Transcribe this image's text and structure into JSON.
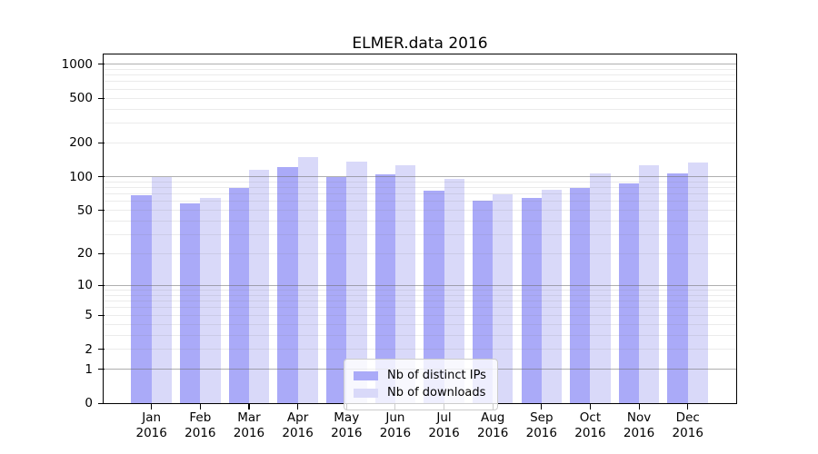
{
  "title": "ELMER.data 2016",
  "chart_data": {
    "type": "bar",
    "title": "ELMER.data 2016",
    "categories": [
      "Jan 2016",
      "Feb 2016",
      "Mar 2016",
      "Apr 2016",
      "May 2016",
      "Jun 2016",
      "Jul 2016",
      "Aug 2016",
      "Sep 2016",
      "Oct 2016",
      "Nov 2016",
      "Dec 2016"
    ],
    "series": [
      {
        "name": "Nb of distinct IPs",
        "color": "#aaaaf8",
        "values": [
          68,
          58,
          80,
          121,
          100,
          106,
          75,
          61,
          65,
          79,
          87,
          107
        ]
      },
      {
        "name": "Nb of downloads",
        "color": "#d9d9f9",
        "values": [
          100,
          64,
          116,
          150,
          136,
          127,
          95,
          69,
          77,
          107,
          127,
          133
        ]
      }
    ],
    "xlabel": "",
    "ylabel": "",
    "yscale": "log10(value+1)",
    "ytick_labels": [
      "0",
      "1",
      "2",
      "5",
      "10",
      "20",
      "50",
      "100",
      "200",
      "500",
      "1000"
    ],
    "ytick_values": [
      0,
      1,
      2,
      5,
      10,
      20,
      50,
      100,
      200,
      500,
      1000
    ],
    "ylim": [
      0,
      1200
    ],
    "grid": true,
    "legend_position": "lower center",
    "background_color": "#ffffff",
    "frame_color": "#000000"
  }
}
